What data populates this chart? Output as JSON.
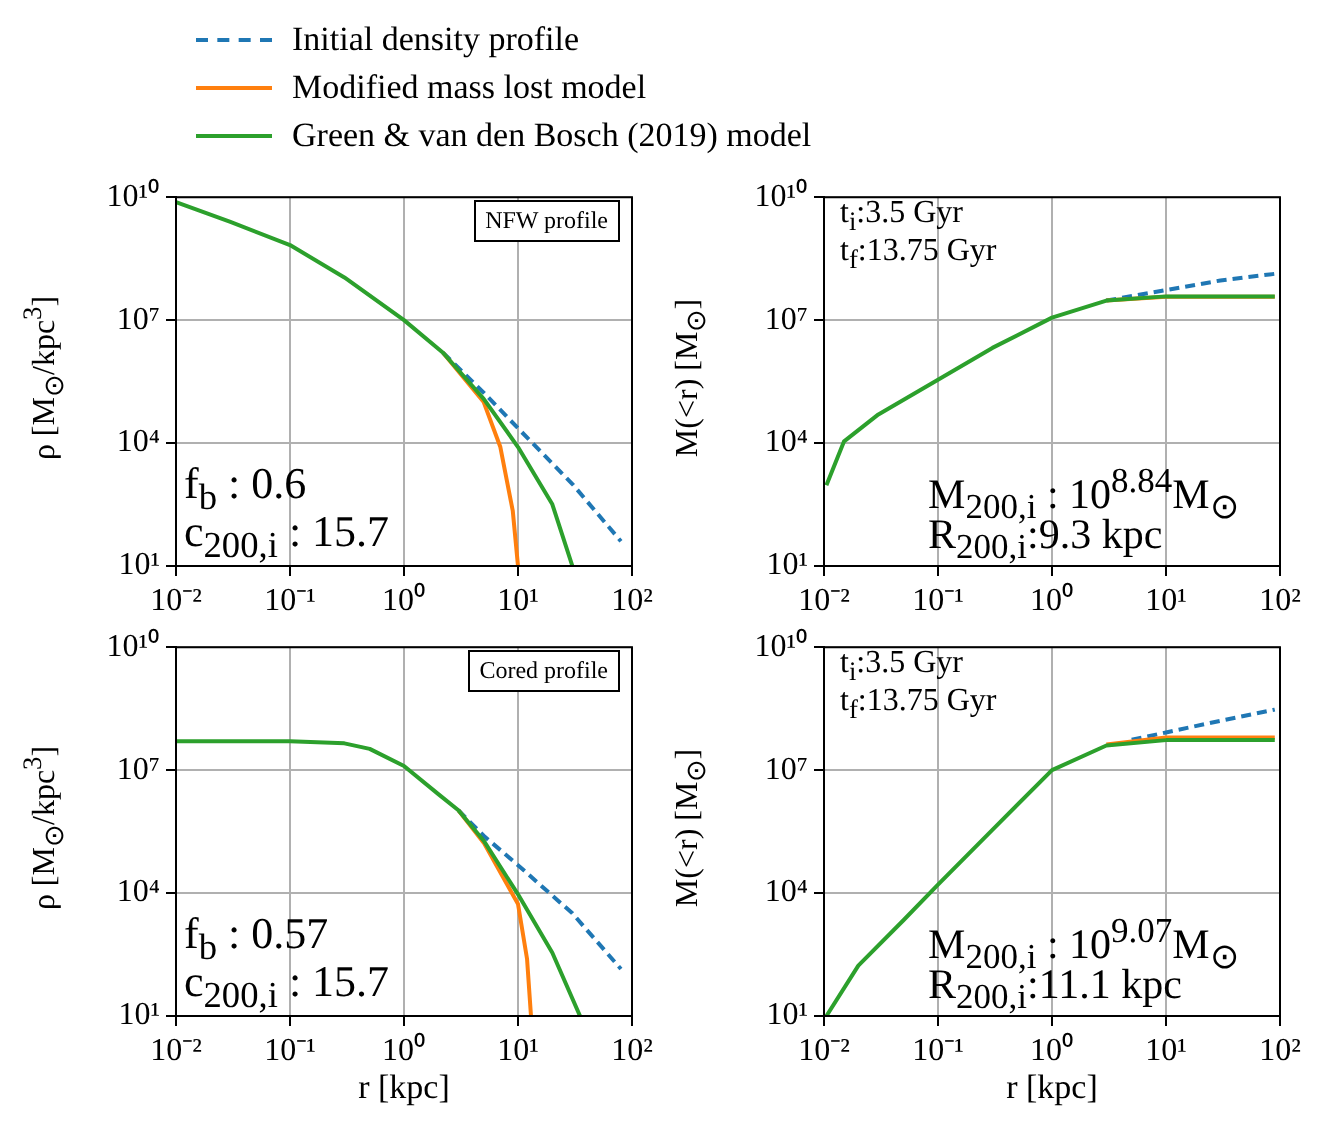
{
  "chart_data": [
    {
      "type": "line",
      "ylabel": "ρ [M$_{⊙}$/kpc$^{3}$]",
      "log": "xy",
      "grid": true,
      "legend": "top",
      "xlim": [
        0.01,
        100
      ],
      "xticks": [
        {
          "value": 0.01,
          "label": "10⁻²"
        },
        {
          "value": 0.1,
          "label": "10⁻¹"
        },
        {
          "value": 1,
          "label": "10⁰"
        },
        {
          "value": 10,
          "label": "10¹"
        },
        {
          "value": 100,
          "label": "10²"
        }
      ],
      "ylim": [
        10,
        10000000000
      ],
      "yticks": [
        {
          "value": 10,
          "label": "10¹"
        },
        {
          "value": 10000,
          "label": "10⁴"
        },
        {
          "value": 10000000,
          "label": "10⁷"
        },
        {
          "value": 10000000000,
          "label": "10¹⁰"
        }
      ],
      "annotations": [
        "NFW profile",
        "f$_{b}$ : 0.6",
        "c$_{200,i}$ : 15.7"
      ],
      "series": [
        {
          "name": "Initial density profile",
          "color": "#1f77b4",
          "line_style": "dashed",
          "x": [
            2.2,
            5,
            10,
            30,
            80
          ],
          "values": [
            1600000,
            170000,
            23000,
            1000,
            40
          ]
        },
        {
          "name": "Modified mass lost model",
          "color": "#ff7f0e",
          "x": [
            2.2,
            5,
            7,
            9,
            10
          ],
          "values": [
            1600000,
            100000,
            8000,
            220,
            10
          ]
        },
        {
          "name": "Green & van den Bosch (2019) model",
          "color": "#2ca02c",
          "x": [
            0.01,
            0.03,
            0.1,
            0.3,
            1,
            2.2,
            5,
            10,
            20,
            30
          ],
          "values": [
            7600000000,
            2500000000,
            680000000,
            110000000,
            10000000,
            1600000,
            120000,
            8000,
            320,
            10
          ]
        }
      ]
    },
    {
      "type": "line",
      "ylabel": "M(<r) [M$_{⊙}$]",
      "log": "xy",
      "grid": true,
      "xlim": [
        0.01,
        100
      ],
      "xticks": [
        {
          "value": 0.01,
          "label": "10⁻²"
        },
        {
          "value": 0.1,
          "label": "10⁻¹"
        },
        {
          "value": 1,
          "label": "10⁰"
        },
        {
          "value": 10,
          "label": "10¹"
        },
        {
          "value": 100,
          "label": "10²"
        }
      ],
      "ylim": [
        10,
        10000000000
      ],
      "yticks": [
        {
          "value": 10,
          "label": "10¹"
        },
        {
          "value": 10000,
          "label": "10⁴"
        },
        {
          "value": 10000000,
          "label": "10⁷"
        },
        {
          "value": 10000000000,
          "label": "10¹⁰"
        }
      ],
      "annotations": [
        "t$_{i}$:3.5 Gyr",
        "t$_{f}$:13.75 Gyr",
        "M$_{200,i}$ : 10$^{8.84}$M$_{⊙}$",
        "R$_{200,i}$:9.3 kpc"
      ],
      "series": [
        {
          "color": "#1f77b4",
          "line_style": "dashed",
          "x": [
            3,
            10,
            30,
            90
          ],
          "values": [
            30000000,
            54000000,
            93000000,
            135000000
          ]
        },
        {
          "color": "#ff7f0e",
          "x": [
            3,
            10,
            30,
            90
          ],
          "values": [
            30000000,
            37000000,
            37000000,
            37000000
          ]
        },
        {
          "color": "#2ca02c",
          "x": [
            0.0105,
            0.015,
            0.03,
            0.1,
            0.3,
            1,
            3,
            10,
            30,
            90
          ],
          "values": [
            930,
            11000,
            50000,
            350000,
            2100000,
            11500000,
            30000000,
            38000000,
            38000000,
            38000000
          ]
        }
      ]
    },
    {
      "type": "line",
      "xlabel": "r [kpc]",
      "ylabel": "ρ [M$_{⊙}$/kpc$^{3}$]",
      "log": "xy",
      "grid": true,
      "xlim": [
        0.01,
        100
      ],
      "xticks": [
        {
          "value": 0.01,
          "label": "10⁻²"
        },
        {
          "value": 0.1,
          "label": "10⁻¹"
        },
        {
          "value": 1,
          "label": "10⁰"
        },
        {
          "value": 10,
          "label": "10¹"
        },
        {
          "value": 100,
          "label": "10²"
        }
      ],
      "ylim": [
        10,
        10000000000
      ],
      "yticks": [
        {
          "value": 10,
          "label": "10¹"
        },
        {
          "value": 10000,
          "label": "10⁴"
        },
        {
          "value": 10000000,
          "label": "10⁷"
        },
        {
          "value": 10000000000,
          "label": "10¹⁰"
        }
      ],
      "annotations": [
        "Cored profile",
        "f$_{b}$ : 0.57",
        "c$_{200,i}$ : 15.7"
      ],
      "series": [
        {
          "color": "#1f77b4",
          "line_style": "dashed",
          "x": [
            3,
            5,
            10,
            30,
            80
          ],
          "values": [
            1050000,
            250000,
            48000,
            3200,
            140
          ]
        },
        {
          "color": "#ff7f0e",
          "x": [
            3,
            5,
            10,
            12,
            13
          ],
          "values": [
            1050000,
            170000,
            5400,
            250,
            10
          ]
        },
        {
          "color": "#2ca02c",
          "x": [
            0.01,
            0.1,
            0.3,
            0.5,
            1,
            2,
            3,
            5,
            10,
            20,
            35
          ],
          "values": [
            51000000,
            51000000,
            45000000,
            33000000,
            12600000,
            2600000,
            1050000,
            190000,
            9300,
            350,
            10
          ]
        }
      ]
    },
    {
      "type": "line",
      "xlabel": "r [kpc]",
      "ylabel": "M(<r) [M$_{⊙}$]",
      "log": "xy",
      "grid": true,
      "xlim": [
        0.01,
        100
      ],
      "xticks": [
        {
          "value": 0.01,
          "label": "10⁻²"
        },
        {
          "value": 0.1,
          "label": "10⁻¹"
        },
        {
          "value": 1,
          "label": "10⁰"
        },
        {
          "value": 10,
          "label": "10¹"
        },
        {
          "value": 100,
          "label": "10²"
        }
      ],
      "ylim": [
        10,
        10000000000
      ],
      "yticks": [
        {
          "value": 10,
          "label": "10¹"
        },
        {
          "value": 10000,
          "label": "10⁴"
        },
        {
          "value": 10000000,
          "label": "10⁷"
        },
        {
          "value": 10000000000,
          "label": "10¹⁰"
        }
      ],
      "annotations": [
        "t$_{i}$:3.5 Gyr",
        "t$_{f}$:13.75 Gyr",
        "M$_{200,i}$ : 10$^{9.07}$M$_{⊙}$",
        "R$_{200,i}$:11.1 kpc"
      ],
      "series": [
        {
          "color": "#1f77b4",
          "line_style": "dashed",
          "x": [
            5,
            10,
            30,
            90
          ],
          "values": [
            55000000,
            83000000,
            160000000,
            300000000
          ]
        },
        {
          "color": "#ff7f0e",
          "x": [
            3,
            10,
            30,
            90
          ],
          "values": [
            42000000,
            63000000,
            63000000,
            63000000
          ]
        },
        {
          "color": "#2ca02c",
          "x": [
            0.0105,
            0.02,
            0.05,
            0.1,
            0.3,
            1,
            3,
            10,
            30,
            90
          ],
          "values": [
            10,
            170,
            2200,
            16000,
            350000,
            10000000,
            40000000,
            54000000,
            54000000,
            54000000
          ]
        }
      ]
    }
  ]
}
